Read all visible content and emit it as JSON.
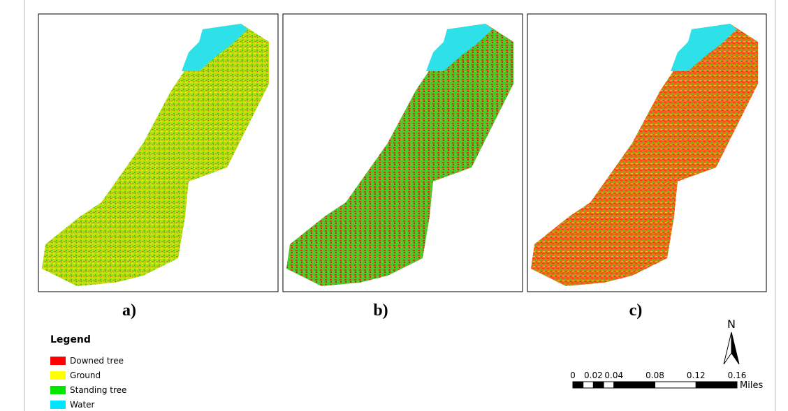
{
  "panels": [
    {
      "label": "a)"
    },
    {
      "label": "b)"
    },
    {
      "label": "c)"
    }
  ],
  "legend": {
    "title": "Legend",
    "items": [
      {
        "name": "Downed tree",
        "color": "#ff0000"
      },
      {
        "name": "Ground",
        "color": "#ffff00"
      },
      {
        "name": "Standing tree",
        "color": "#00e600"
      },
      {
        "name": "Water",
        "color": "#00e5ff"
      }
    ]
  },
  "scale_bar": {
    "ticks": [
      0,
      0.02,
      0.04,
      0.08,
      0.12,
      0.16
    ],
    "unit": "Miles"
  },
  "north_arrow": {
    "label": "N"
  }
}
